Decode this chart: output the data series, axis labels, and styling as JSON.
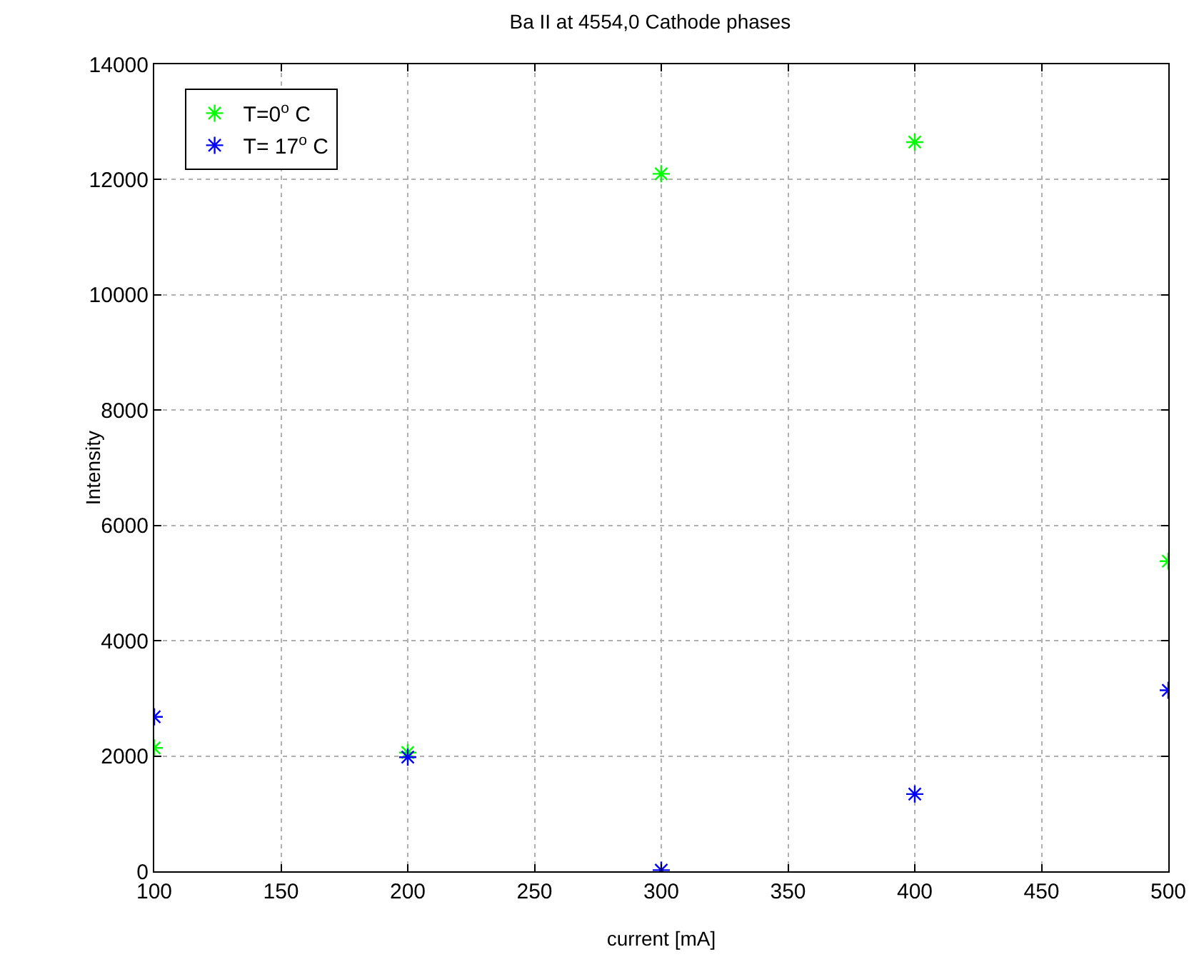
{
  "chart_data": {
    "type": "scatter",
    "title": "Ba II at 4554,0 Cathode phases",
    "xlabel": "current [mA]",
    "ylabel": "Intensity",
    "x": [
      100,
      200,
      300,
      400,
      500
    ],
    "series": [
      {
        "name": "T=0$^{o}$ C",
        "color": "#00ff00",
        "values": [
          2140,
          2060,
          12100,
          12650,
          5380
        ]
      },
      {
        "name": "T= 17$^{o}$ C",
        "color": "#0000ff",
        "values": [
          2680,
          1980,
          20,
          1340,
          3140
        ]
      }
    ],
    "xlim": [
      100,
      500
    ],
    "xticks": [
      100,
      150,
      200,
      250,
      300,
      350,
      400,
      450,
      500
    ],
    "ylim": [
      0,
      14000
    ],
    "yticks": [
      0,
      2000,
      4000,
      6000,
      8000,
      10000,
      12000,
      14000
    ],
    "grid": true,
    "legend": "top left",
    "marker": "cross"
  }
}
